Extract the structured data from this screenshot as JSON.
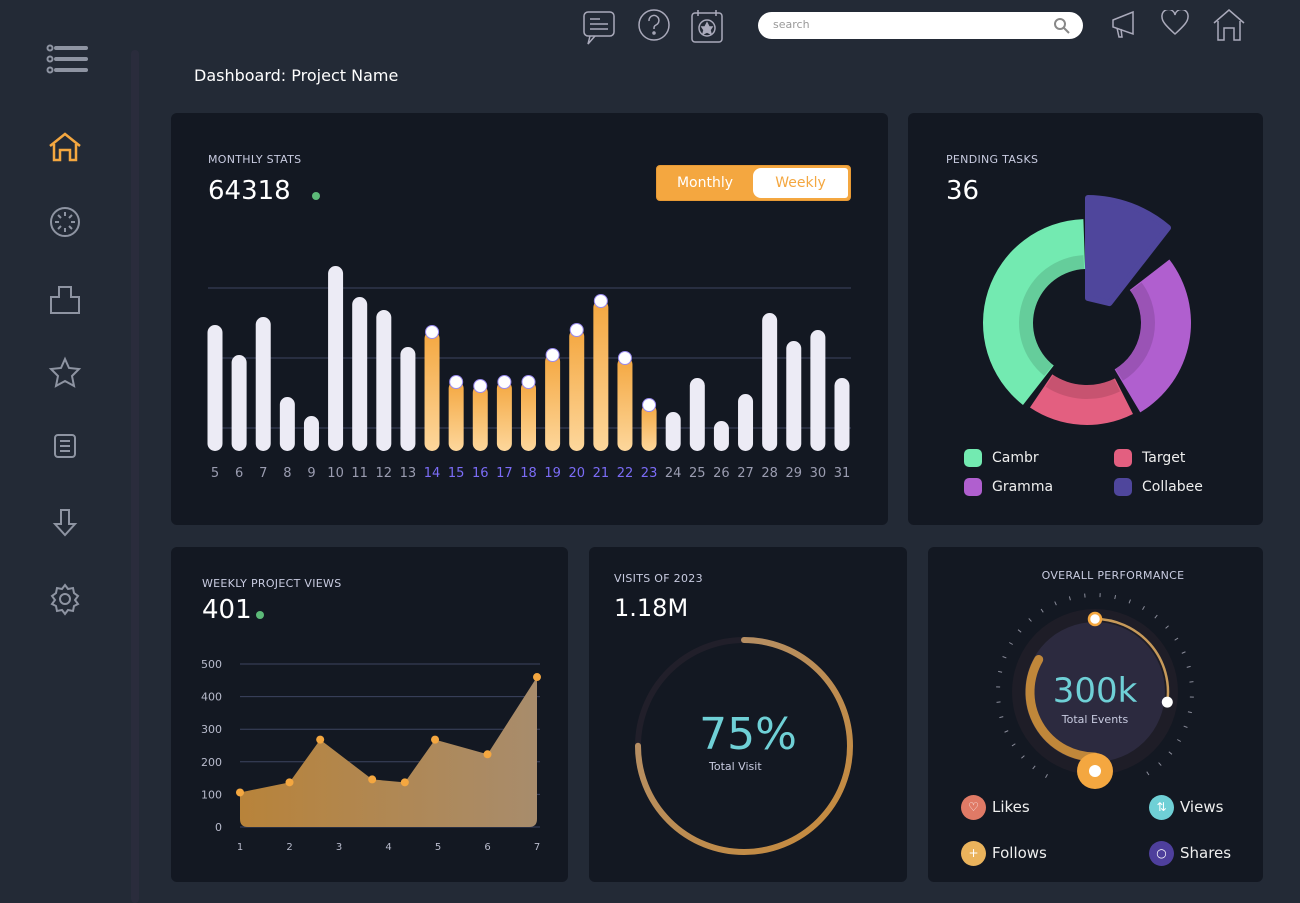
{
  "header": {
    "page_title": "Dashboard: Project Name",
    "search_placeholder": "search",
    "icons": [
      "chat-icon",
      "help-icon",
      "calendar-star-icon",
      "megaphone-icon",
      "heart-icon",
      "home-icon"
    ]
  },
  "sidebar": {
    "icons": [
      "menu-icon",
      "home-icon",
      "dashboard-gauge-icon",
      "folder-icon",
      "star-icon",
      "document-icon",
      "download-icon",
      "settings-icon"
    ],
    "active": "home",
    "active_color": "#f4a740"
  },
  "monthly_stats": {
    "title": "MONTHLY STATS",
    "value": "64318",
    "toggle": {
      "monthly": "Monthly",
      "weekly": "Weekly",
      "selected": "Monthly"
    }
  },
  "pending_tasks": {
    "title": "PENDING TASKS",
    "value": "36"
  },
  "weekly_views": {
    "title": "WEEKLY PROJECT VIEWS",
    "value": "401"
  },
  "visits": {
    "title": "VISITS OF 2023",
    "value": "1.18M",
    "percent": "75%",
    "percent_value": 75,
    "label": "Total Visit"
  },
  "performance": {
    "title": "OVERALL PERFORMANCE",
    "value": "300k",
    "label": "Total Events",
    "legend": [
      {
        "label": "Likes",
        "color": "#e07a66",
        "icon": "heart-icon"
      },
      {
        "label": "Views",
        "color": "#6fd0d6",
        "icon": "arrows-updown-icon"
      },
      {
        "label": "Follows",
        "color": "#eab35c",
        "icon": "add-user-icon"
      },
      {
        "label": "Shares",
        "color": "#4e3f9c",
        "icon": "chat-bubble-icon"
      }
    ]
  },
  "chart_data": [
    {
      "type": "bar",
      "categories": [
        "5",
        "6",
        "7",
        "8",
        "9",
        "10",
        "11",
        "12",
        "13",
        "14",
        "15",
        "16",
        "17",
        "18",
        "19",
        "20",
        "21",
        "22",
        "23",
        "24",
        "25",
        "26",
        "27",
        "28",
        "29",
        "30",
        "31"
      ],
      "values": [
        126,
        96,
        134,
        54,
        35,
        185,
        154,
        141,
        104,
        120,
        70,
        66,
        70,
        70,
        97,
        122,
        151,
        94,
        47,
        39,
        73,
        30,
        57,
        138,
        110,
        121,
        73
      ],
      "highlighted": [
        "14",
        "15",
        "16",
        "17",
        "18",
        "19",
        "20",
        "21",
        "22",
        "23"
      ],
      "grid": true,
      "colors": {
        "normal": "#ecebf5",
        "highlight": "#f4a740",
        "highlight_label": "#7b6cf6",
        "label": "#9a9cb0"
      }
    },
    {
      "type": "pie",
      "series": [
        {
          "name": "Cambr",
          "value": 40,
          "color": "#73eab1"
        },
        {
          "name": "Collabee",
          "value": 14,
          "color": "#4f469c"
        },
        {
          "name": "Gramma",
          "value": 28,
          "color": "#b05fcf"
        },
        {
          "name": "Target",
          "value": 18,
          "color": "#e35f80"
        }
      ],
      "legend": "bottom"
    },
    {
      "type": "area",
      "x": [
        1,
        2,
        2.62,
        3.67,
        4.33,
        4.94,
        6,
        7
      ],
      "y": [
        106,
        137,
        268,
        146,
        137,
        268,
        223,
        460
      ],
      "xticks": [
        "1",
        "2",
        "3",
        "4",
        "5",
        "6",
        "7"
      ],
      "yticks": [
        "0",
        "100",
        "200",
        "300",
        "400",
        "500"
      ],
      "ylim": [
        0,
        500
      ],
      "xlim": [
        1,
        7
      ],
      "grid": true,
      "color": "#f4a740"
    }
  ]
}
